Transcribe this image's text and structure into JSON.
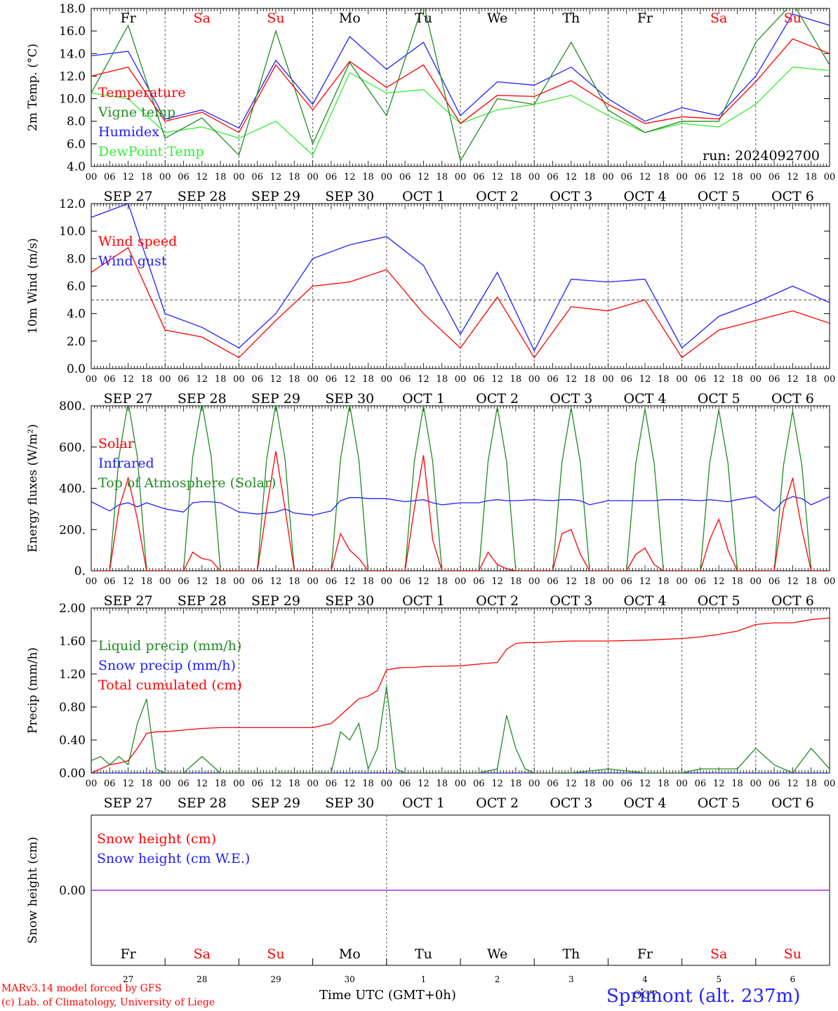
{
  "colors": {
    "red": "#ff0000",
    "green": "#228b22",
    "blue": "#2020ff",
    "lightgreen": "#33ee33",
    "purple": "#a020f0"
  },
  "day_labels": [
    {
      "name": "Fr",
      "weekend": false
    },
    {
      "name": "Sa",
      "weekend": true
    },
    {
      "name": "Su",
      "weekend": true
    },
    {
      "name": "Mo",
      "weekend": false
    },
    {
      "name": "Tu",
      "weekend": false
    },
    {
      "name": "We",
      "weekend": false
    },
    {
      "name": "Th",
      "weekend": false
    },
    {
      "name": "Fr",
      "weekend": false
    },
    {
      "name": "Sa",
      "weekend": true
    },
    {
      "name": "Su",
      "weekend": true
    }
  ],
  "date_labels": [
    "SEP 27",
    "SEP 28",
    "SEP 29",
    "SEP 30",
    "OCT  1",
    "OCT  2",
    "OCT  3",
    "OCT  4",
    "OCT  5",
    "OCT  6"
  ],
  "hour_ticks": [
    "00",
    "06",
    "12",
    "18"
  ],
  "last_hour_tick": "00",
  "bottom_day_numbers": [
    "27",
    "28",
    "29",
    "30",
    "1",
    "2",
    "3",
    "4",
    "5",
    "6"
  ],
  "bottom_month_label": "OCT",
  "x_axis_title": "Time UTC (GMT+0h)",
  "credits": [
    "MARv3.14 model forced by GFS",
    "(c) Lab. of Climatology, University of Liege"
  ],
  "station": "Sprimont (alt. 237m)",
  "chart_data": [
    {
      "type": "line",
      "ylabel": "2m Temp. (°C)",
      "ylim": [
        4,
        18
      ],
      "yticks": [
        "4.0",
        "6.0",
        "8.0",
        "10.0",
        "12.0",
        "14.0",
        "16.0",
        "18.0"
      ],
      "annotation": "run: 2024092700",
      "x_hours": [
        0,
        12,
        24,
        36,
        48,
        60,
        72,
        84,
        96,
        108,
        120,
        132,
        144,
        156,
        168,
        180,
        192,
        204,
        216,
        228,
        240
      ],
      "series": [
        {
          "name": "Temperature",
          "color": "red",
          "values": [
            12.0,
            12.8,
            8.0,
            8.8,
            7.0,
            13.0,
            9.0,
            13.3,
            11.0,
            13.0,
            7.8,
            10.3,
            10.2,
            11.6,
            9.5,
            7.8,
            8.4,
            8.2,
            11.5,
            15.3,
            14.0
          ]
        },
        {
          "name": "Vigne temp",
          "color": "green",
          "values": [
            10.5,
            16.5,
            6.5,
            8.3,
            5.0,
            16.0,
            6.0,
            13.2,
            8.5,
            18.5,
            4.5,
            10.0,
            9.5,
            15.0,
            9.0,
            7.0,
            8.0,
            8.0,
            15.0,
            18.5,
            13.0
          ]
        },
        {
          "name": "Humidex",
          "color": "blue",
          "values": [
            13.8,
            14.2,
            8.2,
            9.0,
            7.4,
            13.4,
            9.5,
            15.5,
            12.6,
            15.0,
            8.5,
            11.5,
            11.2,
            12.8,
            10.0,
            8.0,
            9.2,
            8.5,
            12.0,
            17.5,
            16.5
          ]
        },
        {
          "name": "DewPoint Temp",
          "color": "lightgreen",
          "values": [
            10.5,
            10.0,
            7.0,
            7.5,
            6.5,
            8.0,
            5.0,
            12.3,
            10.5,
            10.8,
            7.8,
            9.0,
            9.5,
            10.3,
            8.5,
            7.0,
            7.8,
            7.5,
            9.5,
            12.8,
            12.5
          ]
        }
      ]
    },
    {
      "type": "line",
      "ylabel": "10m Wind (m/s)",
      "ylim": [
        0,
        12
      ],
      "yticks": [
        "0.0",
        "2.0",
        "4.0",
        "6.0",
        "8.0",
        "10.0",
        "12.0"
      ],
      "reference_line": 5,
      "x_hours": [
        0,
        12,
        24,
        36,
        48,
        60,
        72,
        84,
        96,
        108,
        120,
        132,
        144,
        156,
        168,
        180,
        192,
        204,
        216,
        228,
        240
      ],
      "series": [
        {
          "name": "Wind speed",
          "color": "red",
          "values": [
            7.0,
            8.8,
            2.8,
            2.3,
            0.8,
            3.5,
            6.0,
            6.3,
            7.2,
            4.0,
            1.5,
            5.2,
            0.8,
            4.5,
            4.2,
            5.0,
            0.8,
            2.8,
            3.5,
            4.2,
            3.3
          ]
        },
        {
          "name": "Wind gust",
          "color": "blue",
          "values": [
            11.0,
            12.0,
            4.0,
            3.0,
            1.5,
            4.0,
            8.0,
            9.0,
            9.6,
            7.5,
            2.5,
            7.0,
            1.3,
            6.5,
            6.3,
            6.5,
            1.5,
            3.8,
            4.8,
            6.0,
            4.8
          ]
        }
      ]
    },
    {
      "type": "line",
      "ylabel": "Energy fluxes (W/m²)",
      "ylim": [
        0,
        800
      ],
      "yticks": [
        "0.",
        "200.",
        "400.",
        "600.",
        "800."
      ],
      "x_hours": [
        0,
        6,
        9,
        12,
        15,
        18,
        24,
        30,
        33,
        36,
        39,
        42,
        48,
        54,
        57,
        60,
        63,
        66,
        72,
        78,
        81,
        84,
        87,
        90,
        96,
        102,
        105,
        108,
        111,
        114,
        120,
        126,
        129,
        132,
        135,
        138,
        144,
        150,
        153,
        156,
        159,
        162,
        168,
        174,
        177,
        180,
        183,
        186,
        192,
        198,
        201,
        204,
        207,
        210,
        216,
        222,
        225,
        228,
        231,
        234,
        240
      ],
      "series": [
        {
          "name": "Solar",
          "color": "red",
          "values": [
            0,
            0,
            300,
            450,
            250,
            0,
            0,
            0,
            90,
            60,
            50,
            0,
            0,
            0,
            300,
            580,
            300,
            0,
            0,
            0,
            180,
            100,
            60,
            0,
            0,
            0,
            300,
            560,
            150,
            0,
            0,
            0,
            90,
            30,
            10,
            0,
            0,
            0,
            180,
            200,
            80,
            0,
            0,
            0,
            80,
            110,
            30,
            0,
            0,
            0,
            150,
            250,
            100,
            0,
            0,
            0,
            300,
            450,
            200,
            0,
            0
          ]
        },
        {
          "name": "Infrared",
          "color": "blue",
          "values": [
            335,
            290,
            320,
            330,
            310,
            330,
            300,
            285,
            330,
            335,
            335,
            330,
            285,
            275,
            280,
            285,
            300,
            280,
            270,
            290,
            340,
            355,
            355,
            350,
            350,
            335,
            340,
            345,
            330,
            320,
            330,
            330,
            340,
            345,
            340,
            340,
            345,
            340,
            345,
            345,
            340,
            320,
            340,
            340,
            340,
            340,
            340,
            345,
            345,
            340,
            345,
            340,
            335,
            345,
            360,
            290,
            340,
            360,
            350,
            320,
            360
          ]
        },
        {
          "name": "Top of Atmosphere (Solar)",
          "color": "green",
          "values": [
            0,
            0,
            550,
            820,
            550,
            0,
            0,
            0,
            550,
            815,
            550,
            0,
            0,
            0,
            540,
            810,
            540,
            0,
            0,
            0,
            540,
            805,
            540,
            0,
            0,
            0,
            530,
            800,
            530,
            0,
            0,
            0,
            530,
            795,
            530,
            0,
            0,
            0,
            525,
            790,
            525,
            0,
            0,
            0,
            520,
            785,
            520,
            0,
            0,
            0,
            520,
            780,
            520,
            0,
            0,
            0,
            510,
            775,
            510,
            0,
            0
          ]
        }
      ]
    },
    {
      "type": "line",
      "ylabel": "Precip (mm/h)",
      "ylim": [
        0,
        2
      ],
      "yticks": [
        "0.00",
        "0.40",
        "0.80",
        "1.20",
        "1.60",
        "2.00"
      ],
      "x_hours": [
        0,
        3,
        6,
        9,
        12,
        15,
        18,
        21,
        24,
        30,
        36,
        42,
        48,
        60,
        72,
        78,
        81,
        84,
        87,
        90,
        93,
        96,
        99,
        102,
        105,
        108,
        120,
        126,
        132,
        135,
        138,
        141,
        144,
        156,
        168,
        180,
        192,
        198,
        204,
        210,
        216,
        222,
        228,
        234,
        240
      ],
      "series": [
        {
          "name": "Liquid precip (mm/h)",
          "color": "green",
          "values": [
            0.15,
            0.2,
            0.1,
            0.2,
            0.1,
            0.6,
            0.9,
            0.05,
            0,
            0,
            0.2,
            0,
            0,
            0,
            0,
            0,
            0.5,
            0.4,
            0.6,
            0.05,
            0.3,
            1.05,
            0.05,
            0,
            0,
            0,
            0,
            0,
            0.05,
            0.7,
            0.3,
            0.05,
            0,
            0,
            0.05,
            0,
            0,
            0.05,
            0.05,
            0.05,
            0.3,
            0.1,
            0,
            0.3,
            0.05
          ]
        },
        {
          "name": "Snow precip (mm/h)",
          "color": "blue",
          "values": [
            0,
            0,
            0,
            0,
            0,
            0,
            0,
            0,
            0,
            0,
            0,
            0,
            0,
            0,
            0,
            0,
            0,
            0,
            0,
            0,
            0,
            0,
            0,
            0,
            0,
            0,
            0,
            0,
            0,
            0,
            0,
            0,
            0,
            0,
            0,
            0,
            0,
            0,
            0,
            0,
            0,
            0,
            0,
            0,
            0
          ]
        },
        {
          "name": "Total cumulated (cm)",
          "color": "red",
          "values": [
            0,
            0.05,
            0.1,
            0.12,
            0.15,
            0.3,
            0.48,
            0.5,
            0.5,
            0.52,
            0.54,
            0.55,
            0.55,
            0.55,
            0.55,
            0.6,
            0.7,
            0.8,
            0.9,
            0.93,
            1.0,
            1.25,
            1.27,
            1.28,
            1.28,
            1.29,
            1.3,
            1.32,
            1.34,
            1.5,
            1.57,
            1.58,
            1.58,
            1.6,
            1.6,
            1.61,
            1.63,
            1.65,
            1.68,
            1.72,
            1.8,
            1.82,
            1.82,
            1.86,
            1.88
          ]
        }
      ]
    },
    {
      "type": "line",
      "ylabel": "Snow height (cm)",
      "ylim": [
        -1,
        1
      ],
      "yticks": [
        "0.00"
      ],
      "x_hours": [
        0,
        240
      ],
      "series": [
        {
          "name": "Snow height (cm)",
          "color": "red",
          "values": [
            0,
            0
          ]
        },
        {
          "name": "Snow height (cm W.E.)",
          "color": "blue",
          "values": [
            0,
            0
          ]
        }
      ]
    }
  ]
}
